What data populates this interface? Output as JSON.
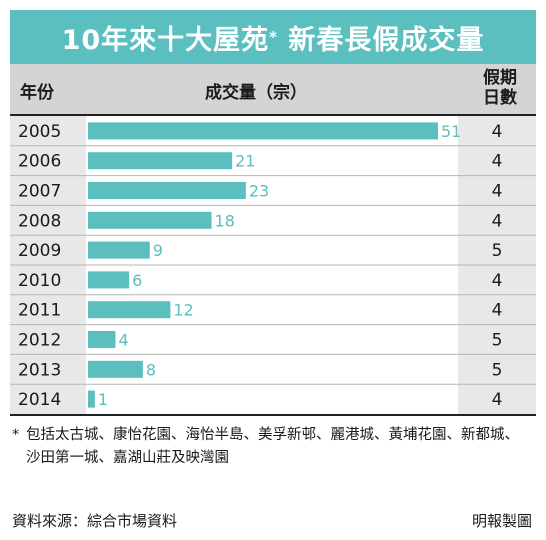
{
  "title": "10年來十大屋苑",
  "title_mark": "*",
  "title_suffix": "新春長假成交量",
  "headers": {
    "year": "年份",
    "volume": "成交量（宗）",
    "days": "假期\n日數"
  },
  "chart_data": {
    "type": "bar",
    "orientation": "horizontal",
    "categories": [
      "2005",
      "2006",
      "2007",
      "2008",
      "2009",
      "2010",
      "2011",
      "2012",
      "2013",
      "2014"
    ],
    "values": [
      51,
      21,
      23,
      18,
      9,
      6,
      12,
      4,
      8,
      1
    ],
    "holiday_days": [
      4,
      4,
      4,
      4,
      5,
      4,
      4,
      5,
      5,
      4
    ],
    "bar_color": "#5bbfbf",
    "xlim": [
      0,
      51
    ]
  },
  "footnote": {
    "mark": "*",
    "text": "包括太古城、康怡花園、海怡半島、美孚新邨、麗港城、黃埔花園、新都城、沙田第一城、嘉湖山莊及映灣園"
  },
  "source": "資料來源：綜合市場資料",
  "credit": "明報製圖",
  "colors": {
    "accent": "#5bbfbf",
    "header_bg": "#d4d4d4",
    "column_bg": "#e8e8e8"
  }
}
